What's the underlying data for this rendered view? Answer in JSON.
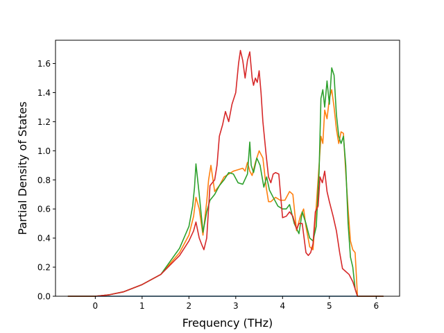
{
  "chart_data": {
    "type": "line",
    "title": "",
    "xlabel": "Frequency (THz)",
    "ylabel": "Partial Density of States",
    "xlim": [
      -0.85,
      6.5
    ],
    "ylim": [
      0.0,
      1.76
    ],
    "xticks": [
      0,
      1,
      2,
      3,
      4,
      5,
      6
    ],
    "xtick_labels": [
      "0",
      "1",
      "2",
      "3",
      "4",
      "5",
      "6"
    ],
    "yticks": [
      0.0,
      0.2,
      0.4,
      0.6,
      0.8,
      1.0,
      1.2,
      1.4,
      1.6
    ],
    "ytick_labels": [
      "0.0",
      "0.2",
      "0.4",
      "0.6",
      "0.8",
      "1.0",
      "1.2",
      "1.4",
      "1.6"
    ],
    "grid": false,
    "legend": "none",
    "series": [
      {
        "color": "#1f77b4",
        "x": [
          -0.58,
          0.0,
          5.62,
          6.15
        ],
        "y": [
          0.0,
          0.0,
          0.0,
          0.0
        ]
      },
      {
        "color": "#ff7f0e",
        "x": [
          -0.58,
          -0.2,
          0.0,
          0.3,
          0.6,
          1.0,
          1.4,
          1.8,
          2.0,
          2.1,
          2.15,
          2.22,
          2.3,
          2.38,
          2.42,
          2.47,
          2.55,
          2.65,
          2.75,
          2.85,
          2.95,
          3.05,
          3.15,
          3.2,
          3.25,
          3.3,
          3.35,
          3.42,
          3.5,
          3.58,
          3.65,
          3.7,
          3.75,
          3.85,
          3.95,
          4.05,
          4.15,
          4.22,
          4.3,
          4.38,
          4.45,
          4.5,
          4.58,
          4.65,
          4.72,
          4.78,
          4.82,
          4.86,
          4.9,
          4.95,
          5.0,
          5.05,
          5.1,
          5.15,
          5.2,
          5.25,
          5.3,
          5.35,
          5.4,
          5.45,
          5.5,
          5.55,
          5.6,
          5.65,
          6.15
        ],
        "y": [
          0.0,
          0.0,
          0.0,
          0.01,
          0.03,
          0.08,
          0.15,
          0.3,
          0.42,
          0.55,
          0.68,
          0.6,
          0.42,
          0.65,
          0.8,
          0.9,
          0.72,
          0.76,
          0.82,
          0.84,
          0.86,
          0.87,
          0.88,
          0.86,
          0.92,
          0.86,
          0.83,
          0.92,
          1.0,
          0.95,
          0.75,
          0.65,
          0.65,
          0.68,
          0.66,
          0.66,
          0.72,
          0.7,
          0.45,
          0.55,
          0.6,
          0.48,
          0.34,
          0.32,
          0.62,
          0.9,
          1.1,
          1.05,
          1.28,
          1.22,
          1.36,
          1.42,
          1.3,
          1.15,
          1.05,
          1.13,
          1.12,
          0.85,
          0.6,
          0.38,
          0.32,
          0.3,
          0.0,
          0.0,
          0.0
        ]
      },
      {
        "color": "#2ca02c",
        "x": [
          -0.58,
          -0.2,
          0.0,
          0.3,
          0.6,
          1.0,
          1.4,
          1.8,
          2.0,
          2.08,
          2.12,
          2.15,
          2.22,
          2.3,
          2.38,
          2.45,
          2.55,
          2.65,
          2.75,
          2.85,
          2.95,
          3.05,
          3.15,
          3.25,
          3.3,
          3.33,
          3.38,
          3.45,
          3.52,
          3.6,
          3.66,
          3.72,
          3.8,
          3.9,
          4.0,
          4.08,
          4.15,
          4.25,
          4.35,
          4.42,
          4.5,
          4.58,
          4.65,
          4.72,
          4.78,
          4.82,
          4.86,
          4.9,
          4.95,
          5.0,
          5.05,
          5.1,
          5.15,
          5.2,
          5.25,
          5.3,
          5.35,
          5.4,
          5.45,
          5.5,
          5.55,
          5.6,
          5.65,
          6.15
        ],
        "y": [
          0.0,
          0.0,
          0.0,
          0.01,
          0.03,
          0.08,
          0.15,
          0.33,
          0.48,
          0.62,
          0.75,
          0.91,
          0.7,
          0.44,
          0.58,
          0.66,
          0.7,
          0.76,
          0.8,
          0.85,
          0.84,
          0.78,
          0.77,
          0.84,
          1.06,
          0.9,
          0.85,
          0.95,
          0.9,
          0.75,
          0.82,
          0.73,
          0.68,
          0.62,
          0.6,
          0.6,
          0.63,
          0.5,
          0.43,
          0.58,
          0.5,
          0.4,
          0.38,
          0.48,
          0.85,
          1.36,
          1.42,
          1.3,
          1.48,
          1.32,
          1.57,
          1.52,
          1.25,
          1.1,
          1.05,
          1.1,
          0.9,
          0.5,
          0.27,
          0.2,
          0.05,
          0.0,
          0.0,
          0.0
        ]
      },
      {
        "color": "#d62728",
        "x": [
          -0.58,
          -0.2,
          0.0,
          0.3,
          0.6,
          1.0,
          1.4,
          1.8,
          2.0,
          2.1,
          2.15,
          2.22,
          2.28,
          2.32,
          2.38,
          2.45,
          2.55,
          2.6,
          2.65,
          2.72,
          2.78,
          2.85,
          2.92,
          3.0,
          3.06,
          3.1,
          3.15,
          3.2,
          3.25,
          3.3,
          3.35,
          3.38,
          3.42,
          3.46,
          3.5,
          3.54,
          3.58,
          3.65,
          3.7,
          3.75,
          3.8,
          3.85,
          3.92,
          4.0,
          4.08,
          4.15,
          4.22,
          4.3,
          4.35,
          4.42,
          4.5,
          4.55,
          4.6,
          4.65,
          4.7,
          4.76,
          4.8,
          4.85,
          4.9,
          4.95,
          5.0,
          5.08,
          5.15,
          5.22,
          5.28,
          5.35,
          5.42,
          5.5,
          5.55,
          5.6,
          6.15
        ],
        "y": [
          0.0,
          0.0,
          0.0,
          0.01,
          0.03,
          0.08,
          0.15,
          0.28,
          0.38,
          0.45,
          0.51,
          0.4,
          0.35,
          0.32,
          0.4,
          0.76,
          0.8,
          0.9,
          1.1,
          1.18,
          1.27,
          1.2,
          1.32,
          1.4,
          1.6,
          1.69,
          1.62,
          1.5,
          1.62,
          1.68,
          1.5,
          1.45,
          1.5,
          1.47,
          1.55,
          1.4,
          1.2,
          0.97,
          0.82,
          0.78,
          0.84,
          0.85,
          0.84,
          0.54,
          0.55,
          0.58,
          0.55,
          0.46,
          0.5,
          0.5,
          0.3,
          0.28,
          0.3,
          0.36,
          0.58,
          0.62,
          0.82,
          0.78,
          0.86,
          0.72,
          0.65,
          0.55,
          0.45,
          0.3,
          0.19,
          0.17,
          0.15,
          0.1,
          0.05,
          0.0,
          0.0
        ]
      }
    ]
  }
}
